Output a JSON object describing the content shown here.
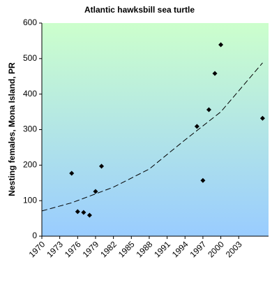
{
  "chart_data": {
    "type": "scatter",
    "title": "Atlantic hawksbill sea turtle",
    "y_label": "Nesting females, Mona Island, PR",
    "x": [
      1975,
      1976,
      1977,
      1978,
      1979,
      1980,
      1996,
      1997,
      1998,
      1999,
      2000,
      2007
    ],
    "values": [
      177,
      69,
      67,
      59,
      126,
      197,
      309,
      157,
      356,
      458,
      539,
      332
    ],
    "color": "#000000",
    "trendline": {
      "x": [
        1970,
        1975,
        1982,
        1988,
        1994,
        2000,
        2007
      ],
      "values": [
        71,
        94,
        138,
        189,
        271,
        350,
        488
      ],
      "color": "#000000",
      "dashed": true
    },
    "xlim": [
      1970,
      2008
    ],
    "xticks": [
      1970,
      1973,
      1976,
      1979,
      1982,
      1985,
      1988,
      1991,
      1994,
      1997,
      2000,
      2003
    ],
    "ylim": [
      0,
      600
    ],
    "yticks": [
      0,
      100,
      200,
      300,
      400,
      500,
      600
    ]
  }
}
